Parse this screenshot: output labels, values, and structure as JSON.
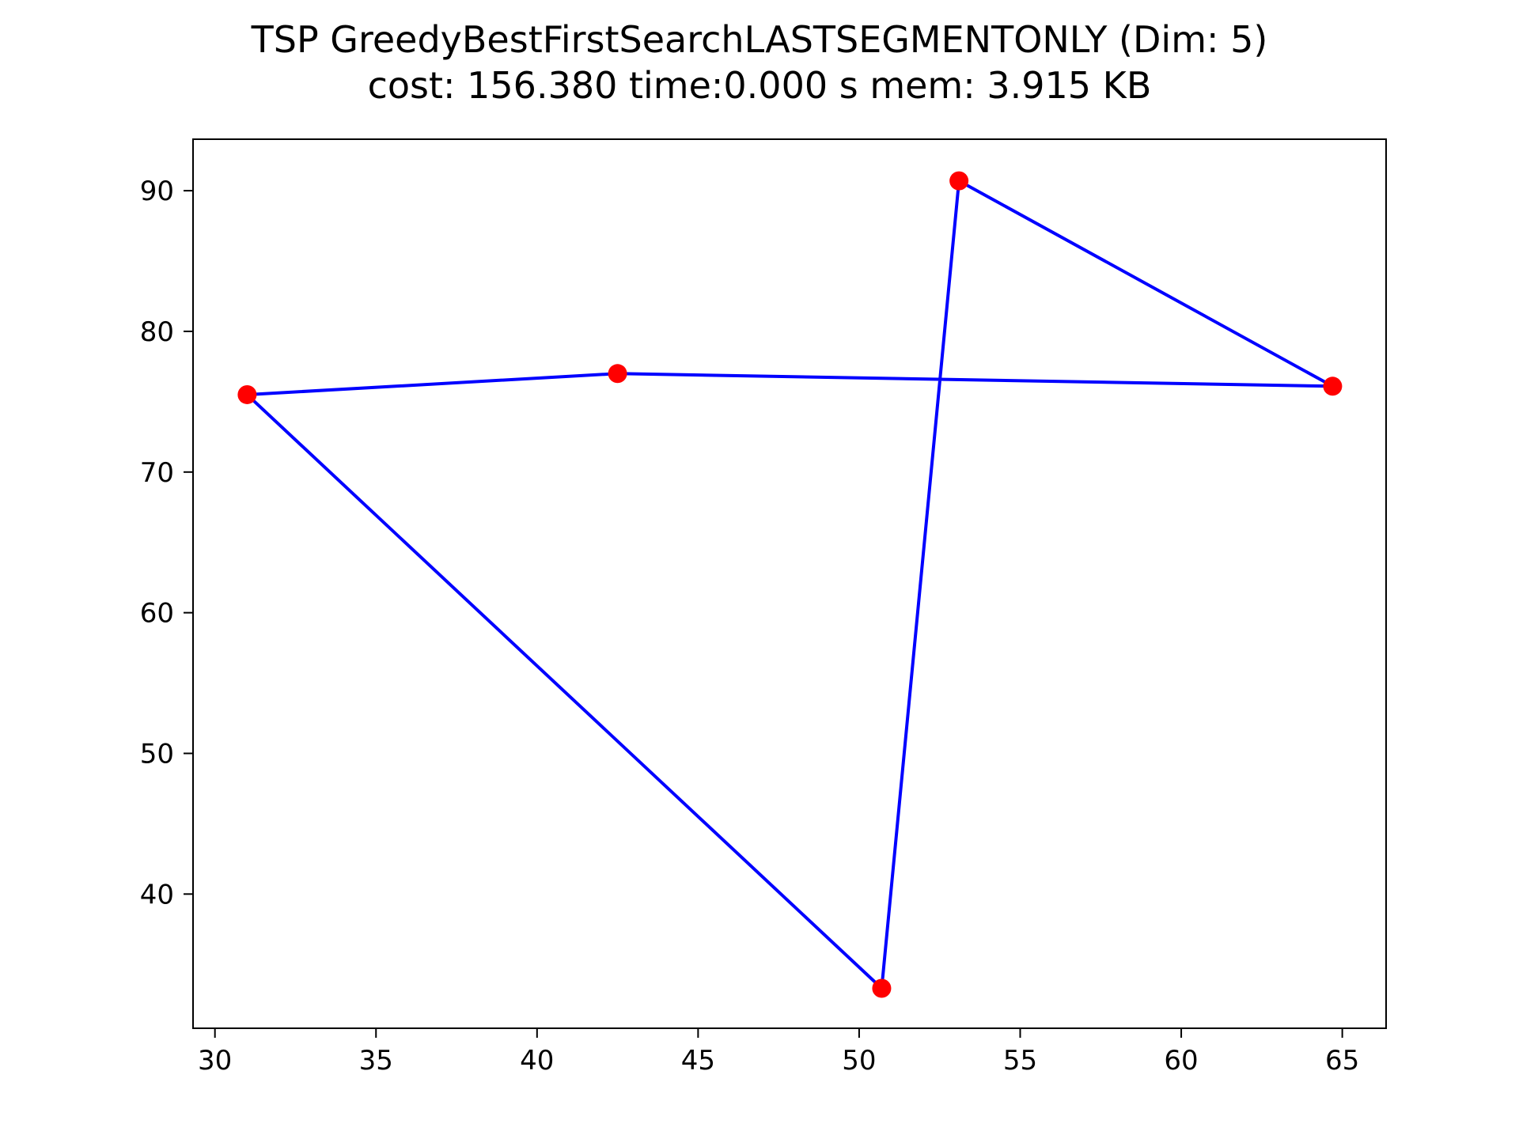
{
  "chart_data": {
    "type": "scatter",
    "title": "TSP GreedyBestFirstSearchLASTSEGMENTONLY (Dim: 5)",
    "subtitle": "cost: 156.380   time:0.000 s   mem: 3.915 KB",
    "xlabel": "",
    "ylabel": "",
    "xlim": [
      29.32,
      66.36
    ],
    "ylim": [
      30.46,
      93.66
    ],
    "xticks": [
      30,
      35,
      40,
      45,
      50,
      55,
      60,
      65
    ],
    "yticks": [
      40,
      50,
      60,
      70,
      80,
      90
    ],
    "grid": false,
    "legend": "none",
    "points": [
      {
        "x": 31.0,
        "y": 75.5
      },
      {
        "x": 42.5,
        "y": 77.0
      },
      {
        "x": 53.1,
        "y": 90.7
      },
      {
        "x": 64.7,
        "y": 76.1
      },
      {
        "x": 50.7,
        "y": 33.3
      }
    ],
    "route": [
      {
        "x": 50.7,
        "y": 33.3
      },
      {
        "x": 31.0,
        "y": 75.5
      },
      {
        "x": 42.5,
        "y": 77.0
      },
      {
        "x": 64.7,
        "y": 76.1
      },
      {
        "x": 53.1,
        "y": 90.7
      },
      {
        "x": 50.7,
        "y": 33.3
      }
    ],
    "colors": {
      "points": "#ff0000",
      "route": "#0000ff",
      "axes": "#000000"
    }
  }
}
